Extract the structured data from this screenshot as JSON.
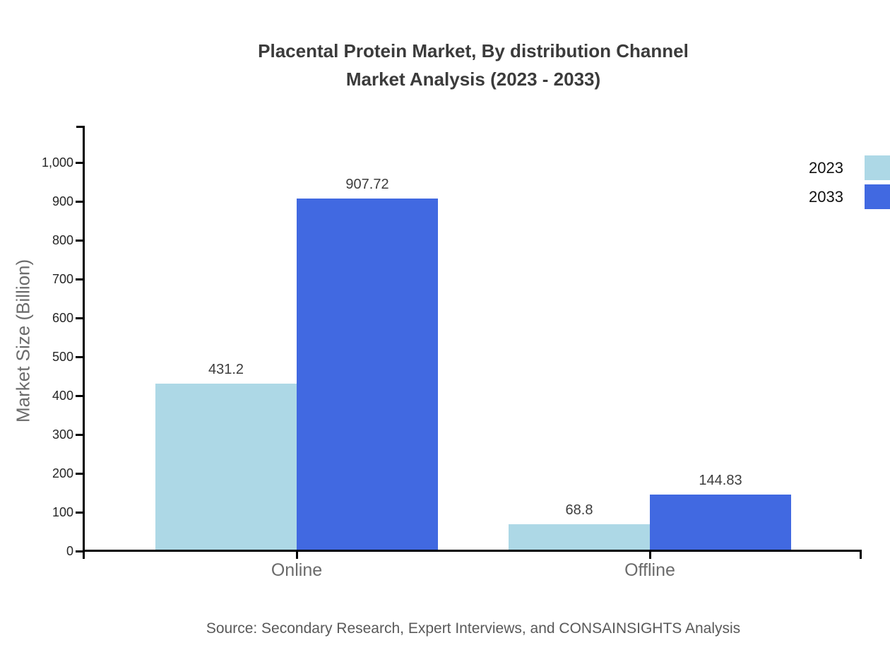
{
  "chart": {
    "title_line1": "Placental Protein Market, By distribution Channel",
    "title_line2": "Market Analysis (2023 - 2033)",
    "ylabel": "Market Size (Billion)",
    "source": "Source: Secondary Research, Expert Interviews, and CONSAINSIGHTS Analysis"
  },
  "chart_data": {
    "type": "bar",
    "title": "Placental Protein Market, By distribution Channel Market Analysis (2023 - 2033)",
    "categories": [
      "Online",
      "Offline"
    ],
    "series": [
      {
        "name": "2023",
        "color": "#ADD8E6",
        "values": [
          431.2,
          68.8
        ],
        "labels": [
          "431.2",
          "68.8"
        ]
      },
      {
        "name": "2033",
        "color": "#4169E1",
        "values": [
          907.72,
          144.83
        ],
        "labels": [
          "907.72",
          "144.83"
        ]
      }
    ],
    "xlabel": "",
    "ylabel": "Market Size (Billion)",
    "ylim": [
      0,
      1094
    ],
    "yticks": [
      0,
      100,
      200,
      300,
      400,
      500,
      600,
      700,
      800,
      900,
      1000
    ],
    "ytick_labels": [
      "0",
      "100",
      "200",
      "300",
      "400",
      "500",
      "600",
      "700",
      "800",
      "900",
      "1,000"
    ],
    "grid": false,
    "legend_position": "top-right",
    "axis_color": "#000000",
    "source": "Source: Secondary Research, Expert Interviews, and CONSAINSIGHTS Analysis"
  }
}
